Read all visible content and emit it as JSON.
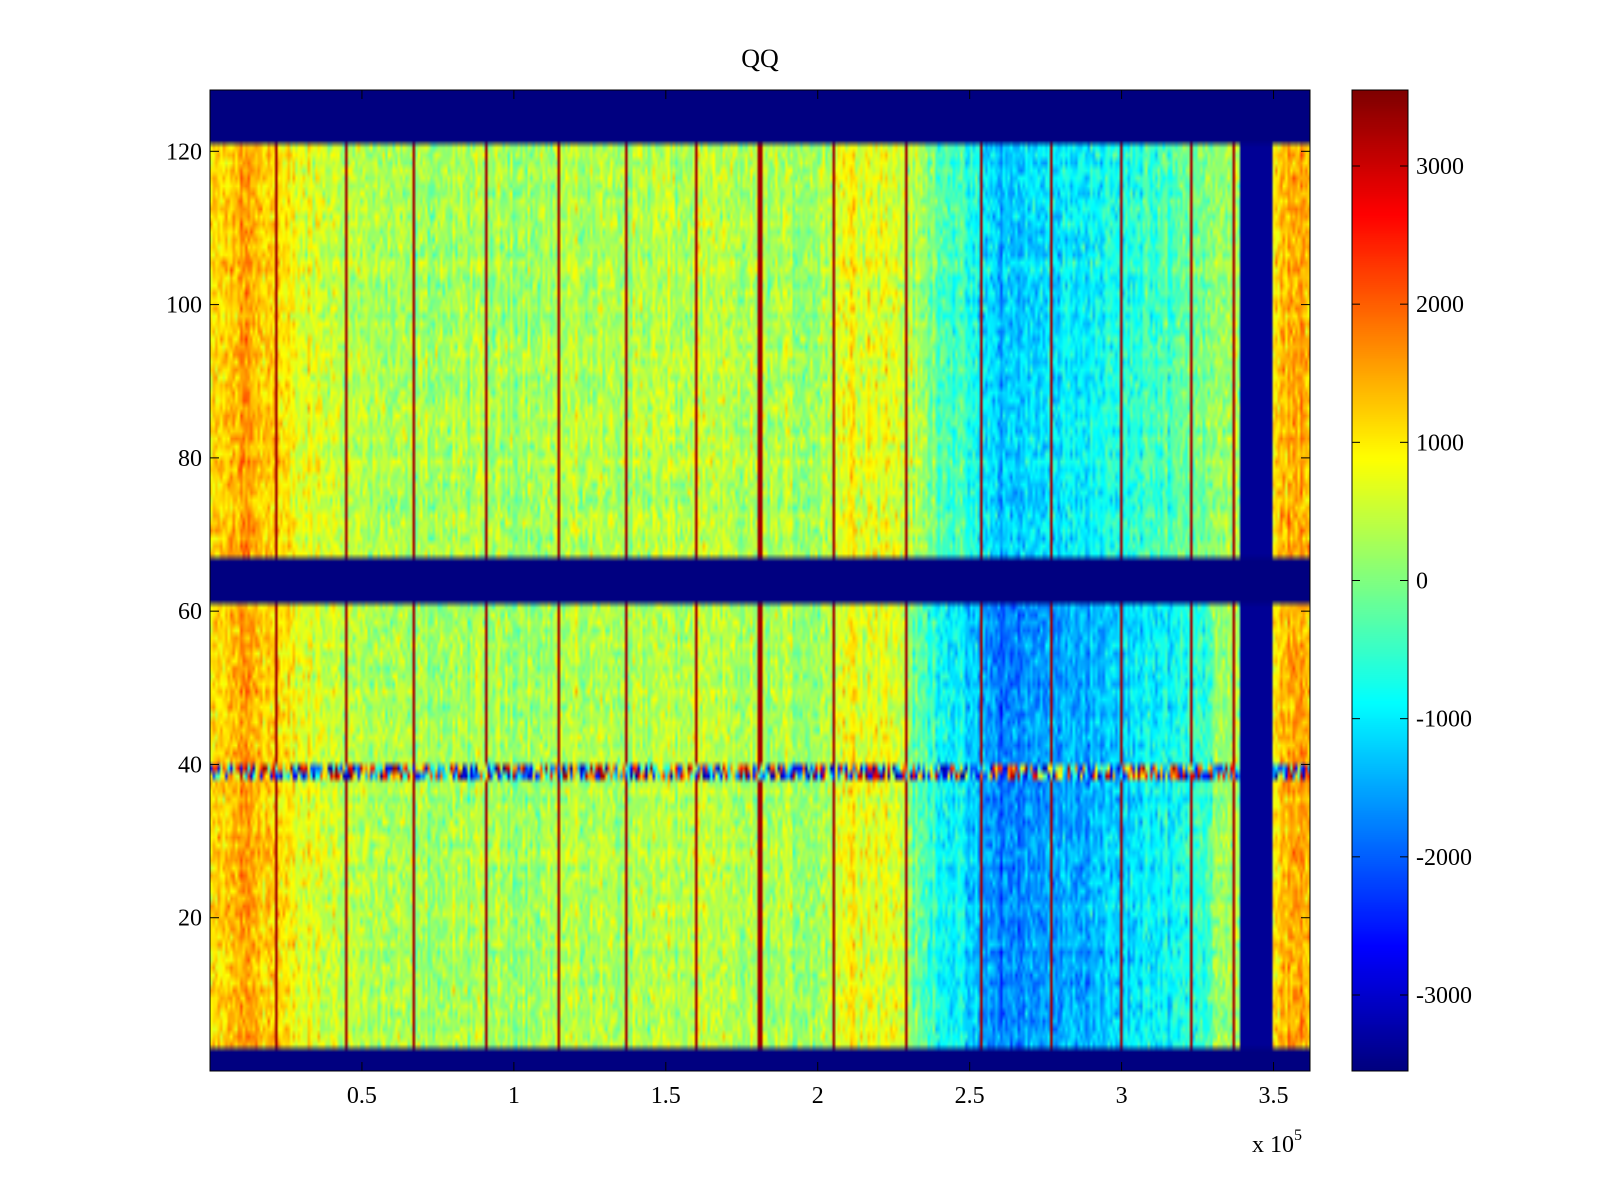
{
  "chart_data": {
    "type": "heatmap",
    "title": "QQ",
    "xlabel": "",
    "ylabel": "",
    "x_exponent_label": {
      "base": "x 10",
      "power": "5"
    },
    "xlim": [
      0,
      3.62
    ],
    "ylim": [
      0,
      128
    ],
    "x_ticks": [
      {
        "value": 0.5,
        "label": "0.5"
      },
      {
        "value": 1,
        "label": "1"
      },
      {
        "value": 1.5,
        "label": "1.5"
      },
      {
        "value": 2,
        "label": "2"
      },
      {
        "value": 2.5,
        "label": "2.5"
      },
      {
        "value": 3,
        "label": "3"
      },
      {
        "value": 3.5,
        "label": "3.5"
      }
    ],
    "y_ticks": [
      {
        "value": 20,
        "label": "20"
      },
      {
        "value": 40,
        "label": "40"
      },
      {
        "value": 60,
        "label": "60"
      },
      {
        "value": 80,
        "label": "80"
      },
      {
        "value": 100,
        "label": "100"
      },
      {
        "value": 120,
        "label": "120"
      }
    ],
    "colorbar": {
      "colormap": "jet",
      "clim": [
        -3550,
        3550
      ],
      "ticks": [
        {
          "value": 3000,
          "label": "3000"
        },
        {
          "value": 2000,
          "label": "2000"
        },
        {
          "value": 1000,
          "label": "1000"
        },
        {
          "value": 0,
          "label": "0"
        },
        {
          "value": -1000,
          "label": "-1000"
        },
        {
          "value": -2000,
          "label": "-2000"
        },
        {
          "value": -3000,
          "label": "-3000"
        }
      ]
    },
    "masked_row_bands": [
      {
        "y_from": 0,
        "y_to": 3,
        "value": -3550
      },
      {
        "y_from": 61,
        "y_to": 67,
        "value": -3550
      },
      {
        "y_from": 121,
        "y_to": 128,
        "value": -3550
      }
    ],
    "masked_column_band": {
      "x_from": 3.39,
      "x_to": 3.5,
      "value": -3400
    },
    "hot_columns_x": [
      0.22,
      0.45,
      0.67,
      0.91,
      1.15,
      1.37,
      1.6,
      1.81,
      2.05,
      2.29,
      2.54,
      2.77,
      3.0,
      3.23,
      3.37
    ],
    "anomalous_row_y": 39,
    "background_level_profile": [
      {
        "x": 0.0,
        "value": 900
      },
      {
        "x": 0.12,
        "value": 1600
      },
      {
        "x": 0.3,
        "value": 700
      },
      {
        "x": 0.6,
        "value": 250
      },
      {
        "x": 1.0,
        "value": 300
      },
      {
        "x": 1.5,
        "value": 400
      },
      {
        "x": 2.0,
        "value": 250
      },
      {
        "x": 2.1,
        "value": 900
      },
      {
        "x": 2.25,
        "value": 700
      },
      {
        "x": 2.5,
        "value": -700
      },
      {
        "x": 2.6,
        "value": -1300
      },
      {
        "x": 3.0,
        "value": -700
      },
      {
        "x": 3.35,
        "value": 200
      },
      {
        "x": 3.55,
        "value": 1400
      }
    ]
  }
}
